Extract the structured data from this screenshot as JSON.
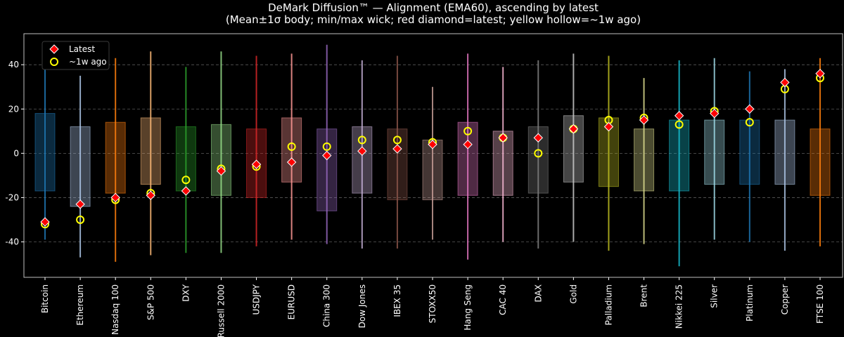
{
  "chart_data": {
    "type": "box",
    "title": "DeMark Diffusion™ — Alignment (EMA60), ascending by latest",
    "subtitle": "(Mean±1σ body; min/max wick; red diamond=latest; yellow hollow=~1w ago)",
    "xlabel": "",
    "ylabel": "",
    "ylim": [
      -56,
      54
    ],
    "yticks": [
      -40,
      -20,
      0,
      20,
      40
    ],
    "grid": "horizontal dashed",
    "legend": {
      "position": "top-left",
      "entries": [
        {
          "label": "Latest",
          "marker": "diamond",
          "color": "#ff0000"
        },
        {
          "label": "~1w ago",
          "marker": "circle-hollow",
          "color": "#ffff00"
        }
      ]
    },
    "categories": [
      "Bitcoin",
      "Ethereum",
      "Nasdaq 100",
      "S&P 500",
      "DXY",
      "Russell 2000",
      "USDJPY",
      "EURUSD",
      "China 300",
      "Dow Jones",
      "IBEX 35",
      "STOXX50",
      "Hang Seng",
      "CAC 40",
      "DAX",
      "Gold",
      "Palladium",
      "Brent",
      "Nikkei 225",
      "Silver",
      "Platinum",
      "Copper",
      "FTSE 100"
    ],
    "colors": [
      "#1f77b4",
      "#aec7e8",
      "#ff7f0e",
      "#ffbb78",
      "#2ca02c",
      "#98df8a",
      "#d62728",
      "#ff9896",
      "#9467bd",
      "#c5b0d5",
      "#8c564b",
      "#c49c94",
      "#e377c2",
      "#f7b6d2",
      "#7f7f7f",
      "#c7c7c7",
      "#bcbd22",
      "#dbdb8d",
      "#17becf",
      "#9edae5",
      "#1f77b4",
      "#aec7e8",
      "#ff7f0e"
    ],
    "body_low": [
      -17,
      -24,
      -18,
      -14,
      -17,
      -19,
      -20,
      -13,
      -26,
      -18,
      -21,
      -21,
      -19,
      -19,
      -18,
      -13,
      -15,
      -17,
      -17,
      -14,
      -14,
      -14,
      -19
    ],
    "body_high": [
      18,
      12,
      14,
      16,
      12,
      13,
      11,
      16,
      11,
      12,
      11,
      6,
      14,
      10,
      12,
      17,
      16,
      11,
      15,
      15,
      15,
      15,
      11
    ],
    "wick_min": [
      -39,
      -47,
      -49,
      -46,
      -45,
      -45,
      -42,
      -39,
      -41,
      -43,
      -43,
      -39,
      -48,
      -40,
      -43,
      -40,
      -44,
      -41,
      -51,
      -39,
      -40,
      -44,
      -42
    ],
    "wick_max": [
      48,
      35,
      43,
      46,
      39,
      46,
      44,
      45,
      49,
      42,
      44,
      30,
      45,
      39,
      42,
      45,
      44,
      34,
      42,
      43,
      37,
      38,
      43
    ],
    "latest": [
      -31,
      -23,
      -20,
      -19,
      -17,
      -8,
      -5,
      -4,
      -1,
      1,
      2,
      4,
      4,
      7,
      7,
      11,
      12,
      15,
      17,
      18,
      20,
      32,
      36
    ],
    "week_ago": [
      -32,
      -30,
      -21,
      -18,
      -12,
      -7,
      -6,
      3,
      3,
      6,
      6,
      5,
      10,
      7,
      0,
      11,
      15,
      16,
      13,
      19,
      14,
      29,
      34
    ]
  }
}
